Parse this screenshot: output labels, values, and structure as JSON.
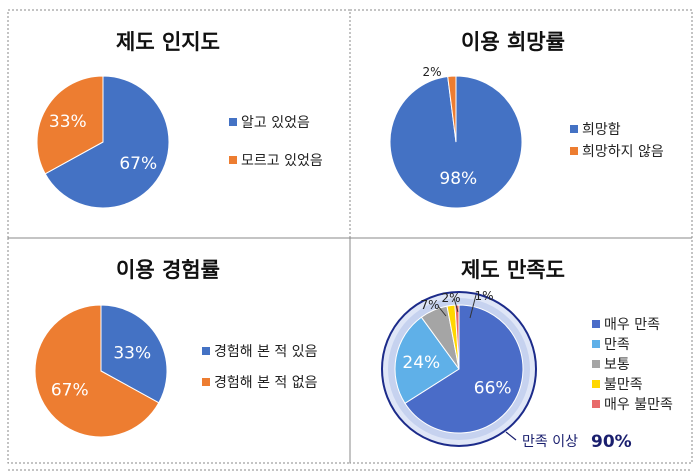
{
  "chart_data": [
    {
      "type": "pie",
      "title": "제도 인지도",
      "slices": [
        {
          "label": "알고 있었음",
          "value": 67,
          "display": "67%",
          "color": "#4472c4"
        },
        {
          "label": "모르고 있었음",
          "value": 33,
          "display": "33%",
          "color": "#ed7d31"
        }
      ],
      "legend": "right"
    },
    {
      "type": "pie",
      "title": "이용 희망률",
      "slices": [
        {
          "label": "희망함",
          "value": 98,
          "display": "98%",
          "color": "#4472c4"
        },
        {
          "label": "희망하지 않음",
          "value": 2,
          "display": "2%",
          "color": "#ed7d31"
        }
      ],
      "legend": "right"
    },
    {
      "type": "pie",
      "title": "이용 경험률",
      "slices": [
        {
          "label": "경험해 본 적 있음",
          "value": 33,
          "display": "33%",
          "color": "#4472c4"
        },
        {
          "label": "경험해 본 적 없음",
          "value": 67,
          "display": "67%",
          "color": "#ed7d31"
        }
      ],
      "legend": "right"
    },
    {
      "type": "pie",
      "title": "제도 만족도",
      "slices": [
        {
          "label": "매우 만족",
          "value": 66,
          "display": "66%",
          "color": "#4a6cc8"
        },
        {
          "label": "만족",
          "value": 24,
          "display": "24%",
          "color": "#5fb0e8"
        },
        {
          "label": "보통",
          "value": 7,
          "display": "7%",
          "color": "#a5a5a5"
        },
        {
          "label": "불만족",
          "value": 2,
          "display": "2%",
          "color": "#ffd700"
        },
        {
          "label": "매우 불만족",
          "value": 1,
          "display": "1%",
          "color": "#e86a6a"
        }
      ],
      "legend": "right",
      "annotation": {
        "text": "만족 이상",
        "value": "90%"
      }
    }
  ]
}
